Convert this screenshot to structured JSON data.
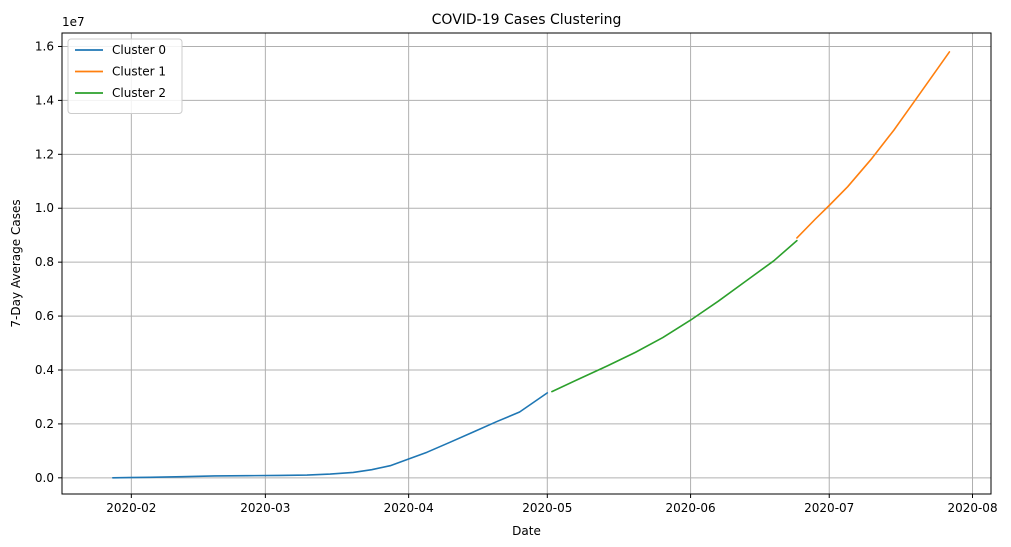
{
  "chart_data": {
    "type": "line",
    "title": "COVID-19 Cases Clustering",
    "xlabel": "Date",
    "ylabel": "7-Day Average Cases",
    "y_offset_label": "1e7",
    "y_scale_factor": 10000000,
    "xlim": [
      "2020-01-17",
      "2020-08-05"
    ],
    "ylim": [
      -600000,
      16500000
    ],
    "x_ticks": [
      "2020-02-01",
      "2020-03-01",
      "2020-04-01",
      "2020-05-01",
      "2020-06-01",
      "2020-07-01",
      "2020-08-01"
    ],
    "x_tick_labels": [
      "2020-02",
      "2020-03",
      "2020-04",
      "2020-05",
      "2020-06",
      "2020-07",
      "2020-08"
    ],
    "y_ticks": [
      0,
      2000000,
      4000000,
      6000000,
      8000000,
      10000000,
      12000000,
      14000000,
      16000000
    ],
    "y_tick_labels": [
      "0.0",
      "0.2",
      "0.4",
      "0.6",
      "0.8",
      "1.0",
      "1.2",
      "1.4",
      "1.6"
    ],
    "grid": true,
    "legend_position": "top-left",
    "series": [
      {
        "name": "Cluster 0",
        "color": "#1f77b4",
        "x": [
          "2020-01-28",
          "2020-02-05",
          "2020-02-12",
          "2020-02-19",
          "2020-02-26",
          "2020-03-04",
          "2020-03-10",
          "2020-03-15",
          "2020-03-20",
          "2020-03-24",
          "2020-03-28",
          "2020-04-01",
          "2020-04-05",
          "2020-04-10",
          "2020-04-15",
          "2020-04-20",
          "2020-04-25",
          "2020-05-01"
        ],
        "values": [
          0,
          20000,
          40000,
          70000,
          80000,
          90000,
          100000,
          140000,
          200000,
          300000,
          450000,
          700000,
          950000,
          1320000,
          1700000,
          2080000,
          2440000,
          3150000
        ]
      },
      {
        "name": "Cluster 1",
        "color": "#ff7f0e",
        "x": [
          "2020-06-24",
          "2020-06-28",
          "2020-07-01",
          "2020-07-05",
          "2020-07-10",
          "2020-07-15",
          "2020-07-20",
          "2020-07-27"
        ],
        "values": [
          8900000,
          9600000,
          10100000,
          10800000,
          11800000,
          12900000,
          14100000,
          15800000
        ]
      },
      {
        "name": "Cluster 2",
        "color": "#2ca02c",
        "x": [
          "2020-05-02",
          "2020-05-08",
          "2020-05-14",
          "2020-05-20",
          "2020-05-26",
          "2020-06-01",
          "2020-06-07",
          "2020-06-13",
          "2020-06-19",
          "2020-06-24"
        ],
        "values": [
          3200000,
          3680000,
          4150000,
          4650000,
          5200000,
          5850000,
          6550000,
          7300000,
          8050000,
          8800000
        ]
      }
    ]
  }
}
